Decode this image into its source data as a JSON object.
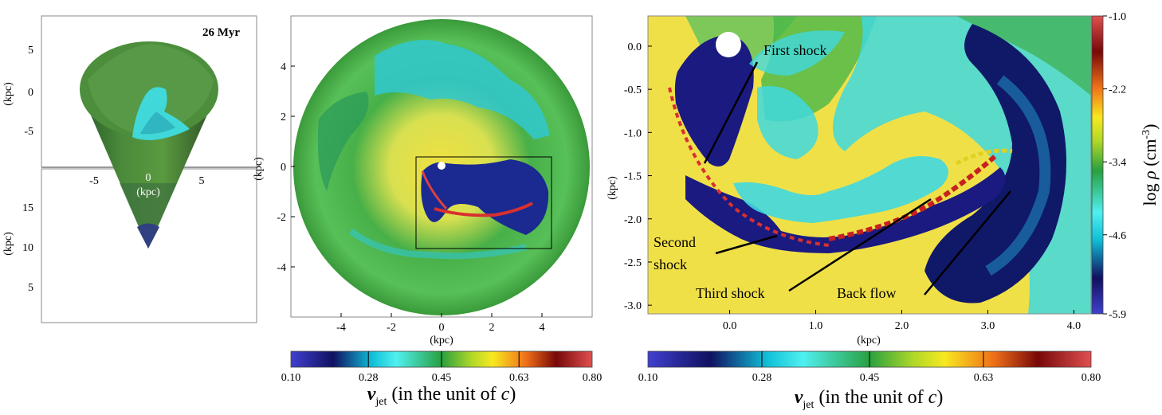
{
  "figure": {
    "panel_a": {
      "time_label": "26 Myr",
      "ylabel_top": "(kpc)",
      "ylabel_bottom": "(kpc)",
      "xlabel": "(kpc)",
      "top_y_ticks": [
        "5",
        "0",
        "-5"
      ],
      "bottom_y_ticks": [
        "15",
        "10",
        "5"
      ],
      "x_ticks": [
        "-5",
        "0",
        "5"
      ]
    },
    "panel_b": {
      "xlabel": "(kpc)",
      "ylabel": "(kpc)",
      "x_ticks": [
        "-4",
        "-2",
        "0",
        "2",
        "4"
      ],
      "y_ticks": [
        "4",
        "2",
        "0",
        "-2",
        "-4"
      ]
    },
    "panel_c": {
      "xlabel": "(kpc)",
      "ylabel": "(kpc)",
      "x_ticks": [
        "0.0",
        "1.0",
        "2.0",
        "3.0",
        "4.0"
      ],
      "y_ticks": [
        "0.0",
        "-0.5",
        "-1.0",
        "-1.5",
        "-2.0",
        "-2.5",
        "-3.0"
      ],
      "annotations": [
        "First shock",
        "Second",
        "shock",
        "Third shock",
        "Back flow"
      ]
    },
    "density_colorbar": {
      "ticks": [
        "-1.0",
        "-2.2",
        "-3.4",
        "-4.6",
        "-5.9"
      ],
      "label_prefix": "log",
      "label_rho": "ρ",
      "label_unit": "(cm",
      "label_sup": "-3",
      "label_close": ")"
    },
    "velocity_colorbar_left": {
      "ticks": [
        "0.10",
        "0.28",
        "0.45",
        "0.63",
        "0.80"
      ]
    },
    "velocity_colorbar_right": {
      "ticks": [
        "0.10",
        "0.28",
        "0.45",
        "0.63",
        "0.80"
      ]
    },
    "velocity_label": {
      "v": "v",
      "sub": "jet",
      "text": " (in the unit of ",
      "c": "c",
      "close": ")"
    }
  },
  "chart_data": [
    {
      "type": "heatmap",
      "panel": "3D cone rendering of jet density",
      "x_range": [
        -9,
        9
      ],
      "y_range_top": [
        -9,
        9
      ],
      "y_range_bottom": [
        0,
        20
      ]
    },
    {
      "type": "heatmap",
      "panel": "Density slice with velocity vectors",
      "xlim": [
        -6,
        6
      ],
      "ylim": [
        -6,
        6
      ],
      "x_ticks": [
        -4,
        -2,
        0,
        2,
        4
      ],
      "y_ticks": [
        4,
        2,
        0,
        -2,
        -4
      ]
    },
    {
      "type": "heatmap",
      "panel": "Zoomed density slice with velocity vectors",
      "xlim": [
        -0.95,
        4.2
      ],
      "ylim": [
        -3.1,
        0.35
      ],
      "x_ticks": [
        0.0,
        1.0,
        2.0,
        3.0,
        4.0
      ],
      "y_ticks": [
        0.0,
        -0.5,
        -1.0,
        -1.5,
        -2.0,
        -2.5,
        -3.0
      ]
    },
    {
      "type": "heatmap",
      "colorbar": "density",
      "range": [
        -5.9,
        -1.0
      ],
      "ticks": [
        -1.0,
        -2.2,
        -3.4,
        -4.6,
        -5.9
      ]
    },
    {
      "type": "heatmap",
      "colorbar": "velocity",
      "range": [
        0.1,
        0.8
      ],
      "ticks": [
        0.1,
        0.28,
        0.45,
        0.63,
        0.8
      ]
    }
  ],
  "colors": {
    "dark_blue": "#1a1a80",
    "cyan": "#20d8e8",
    "green": "#3aa83a",
    "yellow": "#f0e030",
    "orange": "#f08020",
    "red": "#d83838",
    "dark_red": "#7a0808"
  }
}
